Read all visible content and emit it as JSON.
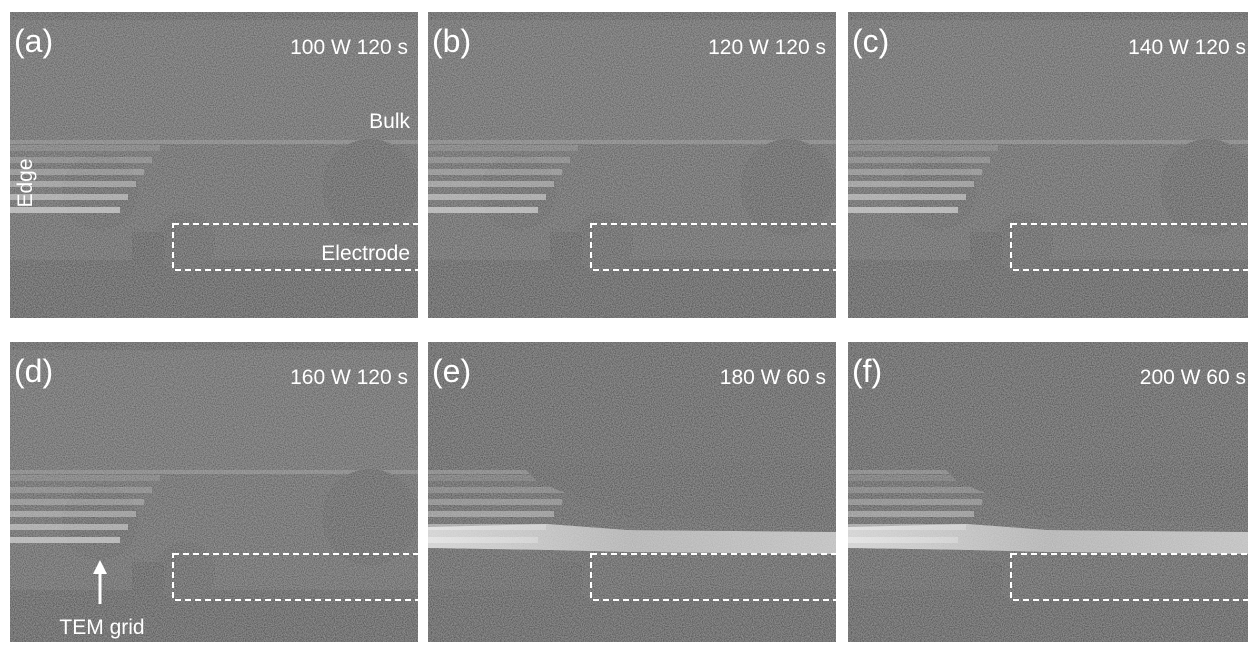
{
  "panels": [
    {
      "label": "(a)",
      "condition": "100 W 120 s"
    },
    {
      "label": "(b)",
      "condition": "120 W 120 s"
    },
    {
      "label": "(c)",
      "condition": "140 W 120 s"
    },
    {
      "label": "(d)",
      "condition": "160 W 120 s"
    },
    {
      "label": "(e)",
      "condition": "180 W 60 s"
    },
    {
      "label": "(f)",
      "condition": "200 W 60 s"
    }
  ],
  "annotations": {
    "bulk": "Bulk",
    "edge": "Edge",
    "electrode": "Electrode",
    "tem_grid": "TEM grid"
  }
}
